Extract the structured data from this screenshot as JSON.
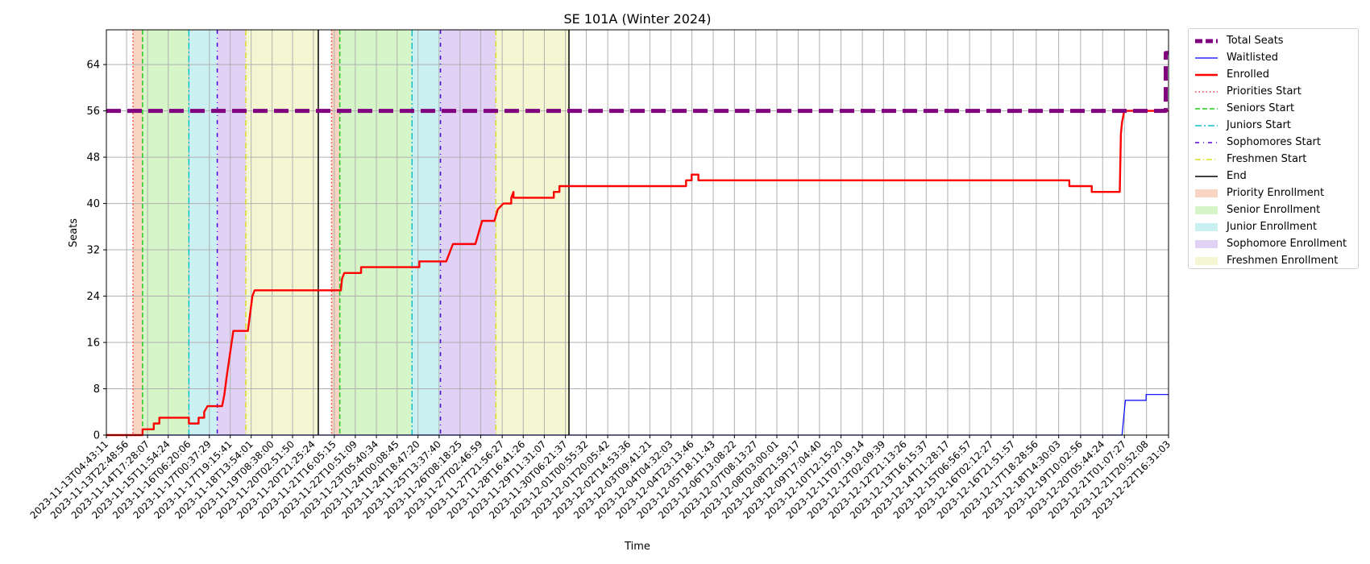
{
  "chart_data": {
    "type": "line",
    "title": "SE 101A (Winter 2024)",
    "xlabel": "Time",
    "ylabel": "Seats",
    "ylim": [
      0,
      70
    ],
    "yticks": [
      0,
      8,
      16,
      24,
      32,
      40,
      48,
      56,
      64
    ],
    "x_start": "2023-11-13T04:43:11",
    "x_end": "2023-12-22T16:31:03",
    "xticks": [
      "2023-11-13T04:43:11",
      "2023-11-13T22:48:56",
      "2023-11-14T17:28:07",
      "2023-11-15T11:54:24",
      "2023-11-16T06:20:06",
      "2023-11-17T00:37:29",
      "2023-11-17T19:15:41",
      "2023-11-18T13:54:01",
      "2023-11-19T08:38:00",
      "2023-11-20T02:51:50",
      "2023-11-20T21:25:24",
      "2023-11-21T16:05:15",
      "2023-11-22T10:51:09",
      "2023-11-23T05:40:34",
      "2023-11-24T00:08:45",
      "2023-11-24T18:47:20",
      "2023-11-25T13:37:40",
      "2023-11-26T08:18:25",
      "2023-11-27T02:46:59",
      "2023-11-27T21:56:27",
      "2023-11-28T16:41:26",
      "2023-11-29T11:31:07",
      "2023-11-30T06:21:37",
      "2023-12-01T00:55:32",
      "2023-12-01T20:05:42",
      "2023-12-02T14:53:36",
      "2023-12-03T09:41:21",
      "2023-12-04T04:32:03",
      "2023-12-04T23:13:46",
      "2023-12-05T18:11:43",
      "2023-12-06T13:08:22",
      "2023-12-07T08:13:27",
      "2023-12-08T03:00:01",
      "2023-12-08T21:59:17",
      "2023-12-09T17:04:40",
      "2023-12-10T12:15:20",
      "2023-12-11T07:19:14",
      "2023-12-12T02:09:39",
      "2023-12-12T21:13:26",
      "2023-12-13T16:15:37",
      "2023-12-14T11:28:17",
      "2023-12-15T06:56:57",
      "2023-12-16T02:12:27",
      "2023-12-16T21:51:57",
      "2023-12-17T18:28:56",
      "2023-12-18T14:30:03",
      "2023-12-19T10:02:56",
      "2023-12-20T05:44:24",
      "2023-12-21T01:07:27",
      "2023-12-21T20:52:08",
      "2023-12-22T16:31:03"
    ],
    "grid": true,
    "legend_placement": "outside right",
    "spans": [
      {
        "legend": "priority",
        "color": "#f4c7ae",
        "intervals": [
          [
            "2023-11-14T04:25:00",
            "2023-11-14T13:00:00"
          ],
          [
            "2023-11-21T13:40:00",
            "2023-11-21T21:00:00"
          ]
        ]
      },
      {
        "legend": "senior",
        "color": "#c8f1b5",
        "intervals": [
          [
            "2023-11-14T13:00:00",
            "2023-11-16T06:20:00"
          ],
          [
            "2023-11-21T21:00:00",
            "2023-11-24T13:30:00"
          ]
        ]
      },
      {
        "legend": "junior",
        "color": "#b9ebee",
        "intervals": [
          [
            "2023-11-16T06:20:00",
            "2023-11-17T07:40:00"
          ],
          [
            "2023-11-24T13:30:00",
            "2023-11-25T14:50:00"
          ]
        ]
      },
      {
        "legend": "sophomore",
        "color": "#d6c2f1",
        "intervals": [
          [
            "2023-11-17T07:40:00",
            "2023-11-18T09:10:00"
          ],
          [
            "2023-11-25T14:50:00",
            "2023-11-27T16:20:00"
          ]
        ]
      },
      {
        "legend": "freshmen",
        "color": "#f1f4c4",
        "intervals": [
          [
            "2023-11-18T09:10:00",
            "2023-11-21T01:50:00"
          ],
          [
            "2023-11-27T16:20:00",
            "2023-11-30T09:30:00"
          ]
        ]
      }
    ],
    "vlines": [
      {
        "legend": "priorities_start",
        "color": "#ff3333",
        "dash": "1.5,3",
        "x": [
          "2023-11-14T04:25:00",
          "2023-11-21T13:40:00"
        ]
      },
      {
        "legend": "seniors_start",
        "color": "#22cc22",
        "dash": "6,3",
        "x": [
          "2023-11-14T13:00:00",
          "2023-11-21T21:00:00"
        ]
      },
      {
        "legend": "juniors_start",
        "color": "#17becf",
        "dash": "8,3,2,3",
        "x": [
          "2023-11-16T06:20:00",
          "2023-11-24T13:30:00"
        ]
      },
      {
        "legend": "sophomores_start",
        "color": "#5500dd",
        "dash": "5,5,1,5",
        "x": [
          "2023-11-17T07:40:00",
          "2023-11-25T14:50:00"
        ]
      },
      {
        "legend": "freshmen_start",
        "color": "#dddd22",
        "dash": "7,3,1,3",
        "x": [
          "2023-11-18T09:10:00",
          "2023-11-27T16:20:00"
        ]
      },
      {
        "legend": "end",
        "color": "#000000",
        "dash": "",
        "x": [
          "2023-11-21T01:50:00",
          "2023-11-30T09:30:00"
        ]
      }
    ],
    "series": [
      {
        "name": "Total Seats",
        "color": "#800080",
        "points": [
          [
            "2023-11-13T04:43:11",
            56
          ],
          [
            "2023-12-22T14:00:00",
            56
          ],
          [
            "2023-12-22T14:00:00",
            66
          ],
          [
            "2023-12-22T16:31:03",
            66
          ]
        ]
      },
      {
        "name": "Waitlisted",
        "color": "#0000ff",
        "points": [
          [
            "2023-11-13T04:43:11",
            0
          ],
          [
            "2023-12-20T23:00:00",
            0
          ],
          [
            "2023-12-21T00:00:00",
            2
          ],
          [
            "2023-12-21T01:00:00",
            4
          ],
          [
            "2023-12-21T02:00:00",
            6
          ],
          [
            "2023-12-21T20:30:00",
            6
          ],
          [
            "2023-12-21T20:30:00",
            7
          ],
          [
            "2023-12-22T16:31:03",
            7
          ]
        ]
      },
      {
        "name": "Enrolled",
        "color": "#ff0000",
        "points": [
          [
            "2023-11-13T04:43:11",
            0
          ],
          [
            "2023-11-14T13:00:00",
            0
          ],
          [
            "2023-11-14T13:00:00",
            1
          ],
          [
            "2023-11-14T23:00:00",
            1
          ],
          [
            "2023-11-14T23:00:00",
            2
          ],
          [
            "2023-11-15T04:00:00",
            2
          ],
          [
            "2023-11-15T04:00:00",
            3
          ],
          [
            "2023-11-16T06:20:00",
            3
          ],
          [
            "2023-11-16T06:20:00",
            2
          ],
          [
            "2023-11-16T15:00:00",
            2
          ],
          [
            "2023-11-16T15:00:00",
            3
          ],
          [
            "2023-11-16T20:00:00",
            3
          ],
          [
            "2023-11-16T20:00:00",
            4
          ],
          [
            "2023-11-16T23:00:00",
            5
          ],
          [
            "2023-11-17T12:00:00",
            5
          ],
          [
            "2023-11-17T14:00:00",
            7
          ],
          [
            "2023-11-17T16:00:00",
            10
          ],
          [
            "2023-11-17T19:00:00",
            14
          ],
          [
            "2023-11-17T22:00:00",
            18
          ],
          [
            "2023-11-18T11:00:00",
            18
          ],
          [
            "2023-11-18T13:00:00",
            21
          ],
          [
            "2023-11-18T15:00:00",
            24
          ],
          [
            "2023-11-18T17:00:00",
            25
          ],
          [
            "2023-11-21T22:00:00",
            25
          ],
          [
            "2023-11-21T23:00:00",
            27
          ],
          [
            "2023-11-22T01:00:00",
            28
          ],
          [
            "2023-11-22T16:00:00",
            28
          ],
          [
            "2023-11-22T16:00:00",
            29
          ],
          [
            "2023-11-24T20:00:00",
            29
          ],
          [
            "2023-11-24T20:00:00",
            30
          ],
          [
            "2023-11-25T20:00:00",
            30
          ],
          [
            "2023-11-25T22:00:00",
            31
          ],
          [
            "2023-11-26T02:00:00",
            33
          ],
          [
            "2023-11-26T22:00:00",
            33
          ],
          [
            "2023-11-27T01:00:00",
            35
          ],
          [
            "2023-11-27T04:00:00",
            37
          ],
          [
            "2023-11-27T15:00:00",
            37
          ],
          [
            "2023-11-27T18:00:00",
            39
          ],
          [
            "2023-11-27T23:00:00",
            40
          ],
          [
            "2023-11-28T06:00:00",
            40
          ],
          [
            "2023-11-28T06:00:00",
            41
          ],
          [
            "2023-11-28T08:00:00",
            42
          ],
          [
            "2023-11-28T08:00:00",
            41
          ],
          [
            "2023-11-29T20:00:00",
            41
          ],
          [
            "2023-11-29T20:00:00",
            42
          ],
          [
            "2023-11-30T01:00:00",
            42
          ],
          [
            "2023-11-30T01:00:00",
            43
          ],
          [
            "2023-12-04T18:00:00",
            43
          ],
          [
            "2023-12-04T18:00:00",
            44
          ],
          [
            "2023-12-04T23:00:00",
            44
          ],
          [
            "2023-12-04T23:00:00",
            45
          ],
          [
            "2023-12-05T05:00:00",
            45
          ],
          [
            "2023-12-05T05:00:00",
            44
          ],
          [
            "2023-12-19T00:00:00",
            44
          ],
          [
            "2023-12-19T00:00:00",
            43
          ],
          [
            "2023-12-19T20:00:00",
            43
          ],
          [
            "2023-12-19T20:00:00",
            42
          ],
          [
            "2023-12-20T21:00:00",
            42
          ],
          [
            "2023-12-20T22:00:00",
            52
          ],
          [
            "2023-12-20T23:00:00",
            54
          ],
          [
            "2023-12-21T01:00:00",
            56
          ],
          [
            "2023-12-22T16:31:03",
            56
          ]
        ]
      }
    ]
  },
  "legend": {
    "items": [
      {
        "label": "Total Seats",
        "kind": "line",
        "color": "#800080",
        "width": 5,
        "dash": "9,4"
      },
      {
        "label": "Waitlisted",
        "kind": "line",
        "color": "#0000ff",
        "width": 1.2,
        "dash": ""
      },
      {
        "label": "Enrolled",
        "kind": "line",
        "color": "#ff0000",
        "width": 2.4,
        "dash": ""
      },
      {
        "label": "Priorities Start",
        "kind": "line",
        "color": "#ff3333",
        "width": 1.4,
        "dash": "1.5,3"
      },
      {
        "label": "Seniors Start",
        "kind": "line",
        "color": "#22cc22",
        "width": 1.4,
        "dash": "6,3"
      },
      {
        "label": "Juniors Start",
        "kind": "line",
        "color": "#17becf",
        "width": 1.4,
        "dash": "8,3,2,3"
      },
      {
        "label": "Sophomores Start",
        "kind": "line",
        "color": "#5500dd",
        "width": 1.4,
        "dash": "5,5,1,5"
      },
      {
        "label": "Freshmen Start",
        "kind": "line",
        "color": "#dddd22",
        "width": 1.4,
        "dash": "7,3,1,3"
      },
      {
        "label": "End",
        "kind": "line",
        "color": "#000000",
        "width": 1.6,
        "dash": ""
      },
      {
        "label": "Priority Enrollment",
        "kind": "patch",
        "color": "#f4c7ae"
      },
      {
        "label": "Senior Enrollment",
        "kind": "patch",
        "color": "#c8f1b5"
      },
      {
        "label": "Junior Enrollment",
        "kind": "patch",
        "color": "#b9ebee"
      },
      {
        "label": "Sophomore Enrollment",
        "kind": "patch",
        "color": "#d6c2f1"
      },
      {
        "label": "Freshmen Enrollment",
        "kind": "patch",
        "color": "#f1f4c4"
      }
    ]
  }
}
